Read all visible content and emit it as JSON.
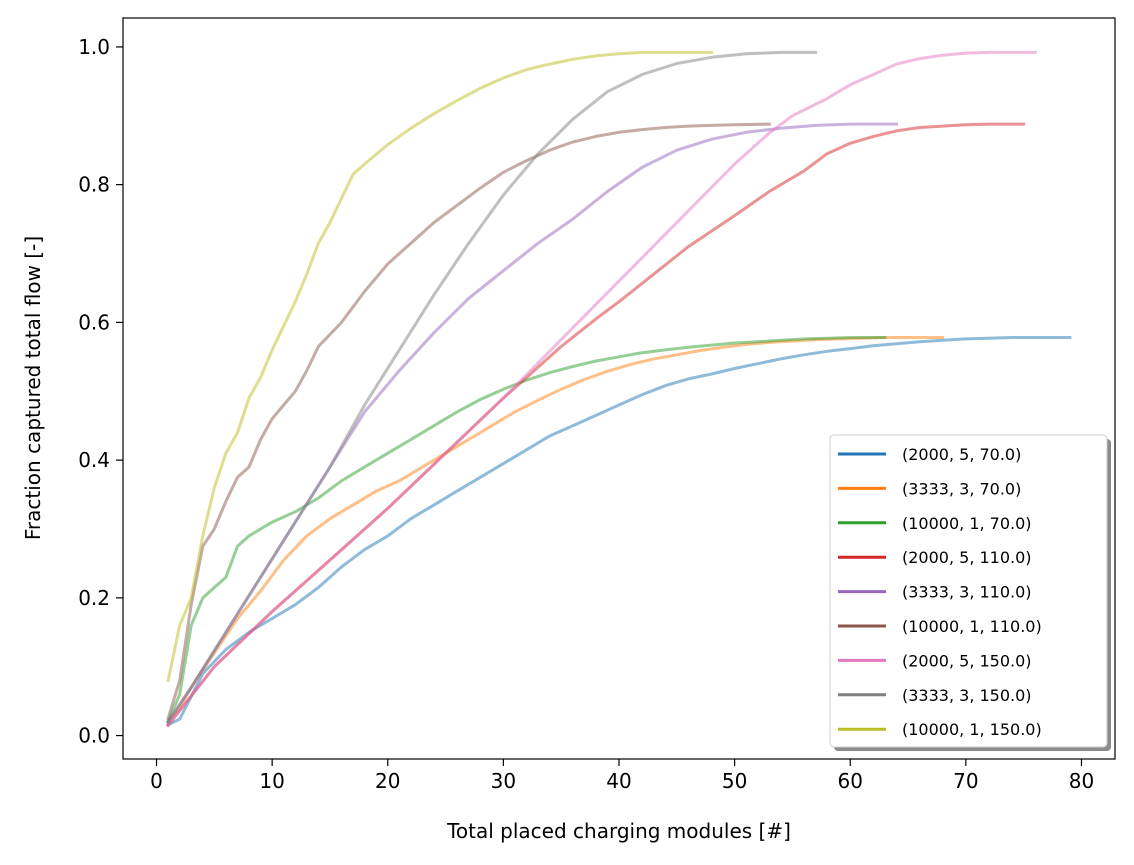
{
  "chart_data": {
    "type": "line",
    "title": "",
    "xlabel": "Total placed charging modules [#]",
    "ylabel": "Fraction captured total flow [-]",
    "xlim": [
      -2.9,
      82.9
    ],
    "ylim": [
      -0.034,
      1.042
    ],
    "xticks": [
      0,
      10,
      20,
      30,
      40,
      50,
      60,
      70,
      80
    ],
    "xtick_labels": [
      "0",
      "10",
      "20",
      "30",
      "40",
      "50",
      "60",
      "70",
      "80"
    ],
    "yticks": [
      0.0,
      0.2,
      0.4,
      0.6,
      0.8,
      1.0
    ],
    "ytick_labels": [
      "0.0",
      "0.2",
      "0.4",
      "0.6",
      "0.8",
      "1.0"
    ],
    "grid": false,
    "legend_position": "lower right",
    "series": [
      {
        "name": "(2000, 5, 70.0)",
        "color": "#1f77b4",
        "alpha": 0.5,
        "x": [
          1,
          2,
          4,
          6,
          8,
          10,
          12,
          14,
          16,
          18,
          20,
          22,
          24,
          26,
          28,
          30,
          32,
          34,
          36,
          38,
          40,
          42,
          44,
          46,
          48,
          50,
          52,
          54,
          56,
          58,
          60,
          62,
          64,
          66,
          68,
          70,
          72,
          74,
          76,
          79
        ],
        "y": [
          0.016,
          0.024,
          0.09,
          0.125,
          0.15,
          0.17,
          0.19,
          0.215,
          0.245,
          0.27,
          0.29,
          0.315,
          0.335,
          0.355,
          0.375,
          0.395,
          0.415,
          0.435,
          0.45,
          0.465,
          0.48,
          0.495,
          0.508,
          0.518,
          0.525,
          0.533,
          0.54,
          0.547,
          0.553,
          0.558,
          0.562,
          0.566,
          0.569,
          0.572,
          0.574,
          0.576,
          0.577,
          0.578,
          0.578,
          0.578
        ]
      },
      {
        "name": "(3333, 3, 70.0)",
        "color": "#ff7f0e",
        "alpha": 0.5,
        "x": [
          1,
          2,
          3,
          5,
          7,
          9,
          11,
          13,
          15,
          17,
          19,
          21,
          23,
          25,
          27,
          29,
          31,
          33,
          35,
          37,
          39,
          41,
          43,
          45,
          47,
          49,
          51,
          53,
          55,
          57,
          59,
          61,
          63,
          65,
          68
        ],
        "y": [
          0.02,
          0.04,
          0.07,
          0.12,
          0.17,
          0.21,
          0.255,
          0.29,
          0.315,
          0.335,
          0.355,
          0.37,
          0.39,
          0.41,
          0.43,
          0.45,
          0.47,
          0.487,
          0.503,
          0.517,
          0.529,
          0.539,
          0.547,
          0.553,
          0.559,
          0.564,
          0.568,
          0.571,
          0.573,
          0.575,
          0.576,
          0.577,
          0.578,
          0.578,
          0.578
        ]
      },
      {
        "name": "(10000, 1, 70.0)",
        "color": "#2ca02c",
        "alpha": 0.5,
        "x": [
          1,
          2,
          3,
          4,
          5,
          6,
          7,
          8,
          9,
          10,
          12,
          14,
          16,
          18,
          20,
          22,
          24,
          26,
          28,
          30,
          32,
          34,
          36,
          38,
          40,
          42,
          44,
          46,
          48,
          50,
          52,
          54,
          56,
          58,
          60,
          63
        ],
        "y": [
          0.02,
          0.06,
          0.16,
          0.2,
          0.215,
          0.23,
          0.275,
          0.29,
          0.3,
          0.31,
          0.325,
          0.345,
          0.37,
          0.39,
          0.41,
          0.43,
          0.45,
          0.47,
          0.488,
          0.503,
          0.516,
          0.527,
          0.536,
          0.544,
          0.55,
          0.556,
          0.56,
          0.564,
          0.567,
          0.57,
          0.572,
          0.574,
          0.576,
          0.577,
          0.578,
          0.578
        ]
      },
      {
        "name": "(2000, 5, 110.0)",
        "color": "#d62728",
        "alpha": 0.5,
        "x": [
          1,
          5,
          10,
          15,
          20,
          25,
          30,
          35,
          38,
          40,
          43,
          46,
          50,
          53,
          56,
          58,
          60,
          62,
          64,
          66,
          68,
          70,
          72,
          75
        ],
        "y": [
          0.015,
          0.1,
          0.18,
          0.255,
          0.33,
          0.41,
          0.49,
          0.565,
          0.605,
          0.63,
          0.67,
          0.71,
          0.755,
          0.79,
          0.82,
          0.845,
          0.86,
          0.87,
          0.878,
          0.883,
          0.885,
          0.887,
          0.888,
          0.888
        ]
      },
      {
        "name": "(3333, 3, 110.0)",
        "color": "#9467bd",
        "alpha": 0.5,
        "x": [
          1,
          3,
          6,
          9,
          12,
          15,
          18,
          21,
          24,
          27,
          30,
          33,
          36,
          39,
          42,
          45,
          48,
          51,
          54,
          57,
          60,
          64
        ],
        "y": [
          0.02,
          0.07,
          0.15,
          0.23,
          0.31,
          0.39,
          0.47,
          0.53,
          0.585,
          0.635,
          0.675,
          0.715,
          0.75,
          0.79,
          0.825,
          0.85,
          0.866,
          0.876,
          0.882,
          0.886,
          0.888,
          0.888
        ]
      },
      {
        "name": "(10000, 1, 110.0)",
        "color": "#8c564b",
        "alpha": 0.5,
        "x": [
          1,
          2,
          3,
          4,
          5,
          6,
          7,
          8,
          9,
          10,
          11,
          12,
          13,
          14,
          16,
          18,
          20,
          22,
          24,
          26,
          28,
          30,
          32,
          34,
          36,
          38,
          40,
          42,
          44,
          46,
          48,
          50,
          53
        ],
        "y": [
          0.025,
          0.08,
          0.19,
          0.275,
          0.3,
          0.34,
          0.375,
          0.39,
          0.43,
          0.46,
          0.48,
          0.5,
          0.53,
          0.565,
          0.6,
          0.645,
          0.685,
          0.715,
          0.745,
          0.77,
          0.795,
          0.818,
          0.835,
          0.85,
          0.862,
          0.87,
          0.876,
          0.88,
          0.883,
          0.885,
          0.886,
          0.887,
          0.888
        ]
      },
      {
        "name": "(2000, 5, 150.0)",
        "color": "#e377c2",
        "alpha": 0.5,
        "x": [
          1,
          5,
          10,
          15,
          20,
          25,
          30,
          35,
          40,
          45,
          50,
          53,
          55,
          58,
          60,
          62,
          64,
          66,
          68,
          70,
          72,
          76
        ],
        "y": [
          0.015,
          0.1,
          0.18,
          0.255,
          0.33,
          0.41,
          0.49,
          0.575,
          0.66,
          0.745,
          0.83,
          0.875,
          0.9,
          0.925,
          0.945,
          0.96,
          0.975,
          0.983,
          0.988,
          0.991,
          0.992,
          0.992
        ]
      },
      {
        "name": "(3333, 3, 150.0)",
        "color": "#7f7f7f",
        "alpha": 0.5,
        "x": [
          1,
          3,
          6,
          9,
          12,
          15,
          18,
          21,
          24,
          27,
          30,
          33,
          36,
          39,
          42,
          45,
          48,
          51,
          54,
          57
        ],
        "y": [
          0.02,
          0.07,
          0.15,
          0.23,
          0.31,
          0.39,
          0.48,
          0.56,
          0.64,
          0.715,
          0.785,
          0.845,
          0.895,
          0.935,
          0.96,
          0.976,
          0.985,
          0.99,
          0.992,
          0.992
        ]
      },
      {
        "name": "(10000, 1, 150.0)",
        "color": "#bcbd22",
        "alpha": 0.5,
        "x": [
          1,
          2,
          3,
          4,
          5,
          6,
          7,
          8,
          9,
          10,
          11,
          12,
          13,
          14,
          15,
          16,
          17,
          18,
          20,
          22,
          24,
          26,
          28,
          30,
          32,
          34,
          36,
          38,
          40,
          42,
          44,
          46,
          48
        ],
        "y": [
          0.08,
          0.16,
          0.2,
          0.29,
          0.36,
          0.41,
          0.44,
          0.49,
          0.52,
          0.56,
          0.595,
          0.63,
          0.67,
          0.715,
          0.745,
          0.78,
          0.815,
          0.83,
          0.858,
          0.882,
          0.903,
          0.922,
          0.94,
          0.955,
          0.967,
          0.975,
          0.982,
          0.987,
          0.99,
          0.992,
          0.992,
          0.992,
          0.992
        ]
      }
    ]
  }
}
